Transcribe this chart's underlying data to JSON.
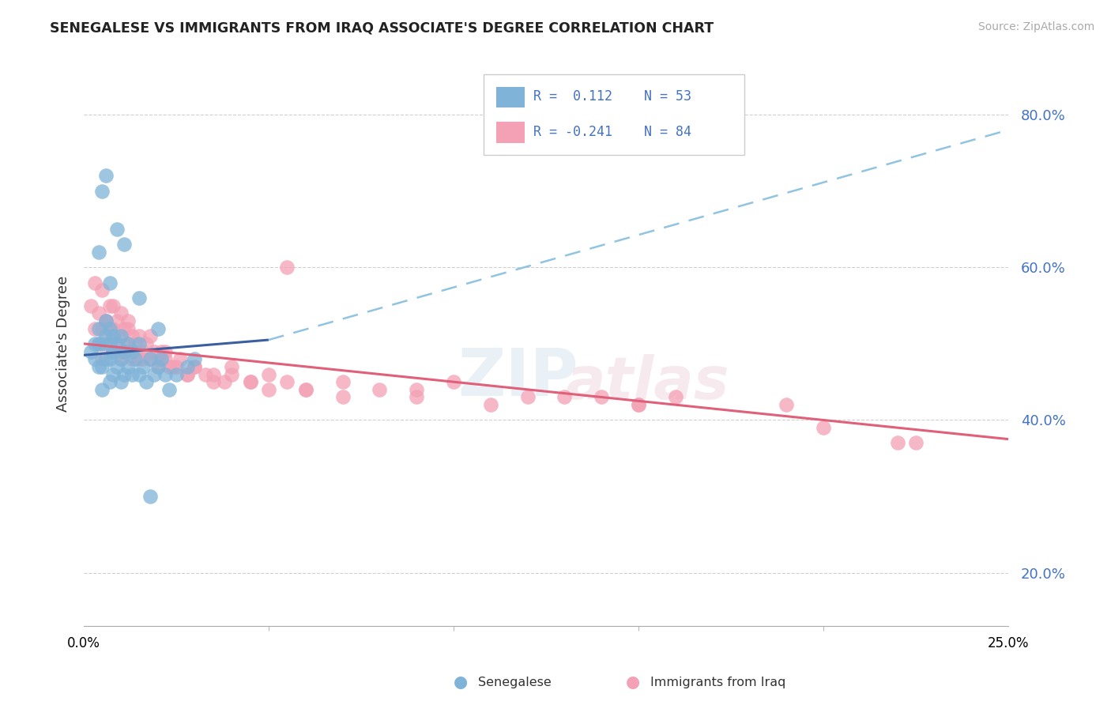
{
  "title": "SENEGALESE VS IMMIGRANTS FROM IRAQ ASSOCIATE'S DEGREE CORRELATION CHART",
  "source": "Source: ZipAtlas.com",
  "ylabel": "Associate's Degree",
  "xlim": [
    0.0,
    25.0
  ],
  "ylim": [
    13.0,
    87.0
  ],
  "yticks": [
    20.0,
    40.0,
    60.0,
    80.0
  ],
  "blue_color": "#7fb3d8",
  "pink_color": "#f4a0b5",
  "blue_line_color": "#3a5fa0",
  "pink_line_color": "#e0607a",
  "blue_dash_color": "#90c4e0",
  "background_color": "#ffffff",
  "grid_color": "#d0d0d0",
  "legend_r1": "R =  0.112",
  "legend_n1": "N = 53",
  "legend_r2": "R = -0.241",
  "legend_n2": "N = 84",
  "blue_trend": [
    0.0,
    48.5,
    5.0,
    50.5
  ],
  "blue_dash": [
    5.0,
    50.5,
    25.0,
    78.0
  ],
  "pink_trend": [
    0.0,
    50.0,
    25.0,
    37.5
  ],
  "sen_x": [
    0.2,
    0.3,
    0.3,
    0.4,
    0.4,
    0.4,
    0.5,
    0.5,
    0.5,
    0.6,
    0.6,
    0.6,
    0.7,
    0.7,
    0.7,
    0.7,
    0.8,
    0.8,
    0.8,
    0.9,
    0.9,
    1.0,
    1.0,
    1.0,
    1.1,
    1.1,
    1.2,
    1.2,
    1.3,
    1.3,
    1.4,
    1.5,
    1.5,
    1.6,
    1.7,
    1.8,
    1.9,
    2.0,
    2.1,
    2.2,
    2.3,
    2.5,
    2.8,
    3.0,
    0.9,
    1.1,
    0.5,
    0.6,
    0.4,
    1.5,
    0.7,
    2.0,
    1.8
  ],
  "sen_y": [
    49,
    48,
    50,
    47,
    50,
    52,
    44,
    47,
    50,
    48,
    51,
    53,
    45,
    48,
    50,
    52,
    46,
    49,
    51,
    47,
    50,
    45,
    48,
    51,
    46,
    49,
    47,
    50,
    46,
    49,
    48,
    46,
    50,
    47,
    45,
    48,
    46,
    47,
    48,
    46,
    44,
    46,
    47,
    48,
    65,
    63,
    70,
    72,
    62,
    56,
    58,
    52,
    30
  ],
  "iraq_x": [
    0.2,
    0.3,
    0.3,
    0.4,
    0.4,
    0.5,
    0.5,
    0.5,
    0.6,
    0.6,
    0.7,
    0.7,
    0.8,
    0.8,
    0.8,
    0.9,
    0.9,
    1.0,
    1.0,
    1.0,
    1.1,
    1.1,
    1.2,
    1.2,
    1.3,
    1.3,
    1.4,
    1.5,
    1.5,
    1.6,
    1.7,
    1.8,
    1.9,
    2.0,
    2.1,
    2.2,
    2.3,
    2.5,
    2.8,
    3.0,
    3.3,
    3.5,
    3.8,
    4.0,
    4.5,
    5.0,
    5.5,
    6.0,
    7.0,
    8.0,
    9.0,
    10.0,
    12.0,
    14.0,
    15.0,
    16.0,
    19.0,
    22.0,
    0.6,
    0.8,
    1.0,
    1.2,
    1.4,
    1.6,
    1.8,
    2.0,
    2.2,
    2.4,
    2.6,
    2.8,
    3.0,
    3.5,
    4.0,
    4.5,
    5.0,
    6.0,
    7.0,
    9.0,
    11.0,
    13.0,
    15.0,
    20.0,
    22.5,
    5.5
  ],
  "iraq_y": [
    55,
    52,
    58,
    50,
    54,
    48,
    52,
    57,
    50,
    53,
    52,
    55,
    49,
    52,
    55,
    50,
    53,
    48,
    51,
    54,
    49,
    52,
    50,
    53,
    48,
    51,
    49,
    48,
    51,
    49,
    50,
    48,
    49,
    47,
    49,
    48,
    47,
    47,
    46,
    47,
    46,
    46,
    45,
    47,
    45,
    46,
    45,
    44,
    45,
    44,
    44,
    45,
    43,
    43,
    42,
    43,
    42,
    37,
    53,
    51,
    49,
    52,
    50,
    48,
    51,
    48,
    49,
    47,
    48,
    46,
    47,
    45,
    46,
    45,
    44,
    44,
    43,
    43,
    42,
    43,
    42,
    39,
    37,
    60
  ]
}
